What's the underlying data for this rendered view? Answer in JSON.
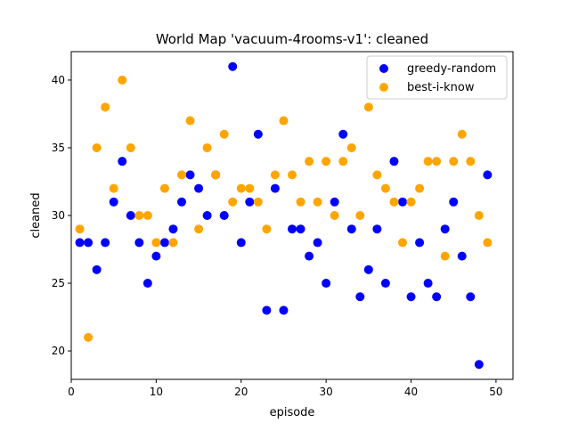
{
  "chart_data": {
    "type": "scatter",
    "title": "World Map 'vacuum-4rooms-v1': cleaned",
    "xlabel": "episode",
    "ylabel": "cleaned",
    "xlim": [
      0,
      52
    ],
    "ylim": [
      17.9,
      42.1
    ],
    "xticks": [
      0,
      10,
      20,
      30,
      40,
      50
    ],
    "yticks": [
      20,
      25,
      30,
      35,
      40
    ],
    "xtick_labels": [
      "0",
      "10",
      "20",
      "30",
      "40",
      "50"
    ],
    "ytick_labels": [
      "20",
      "25",
      "30",
      "35",
      "40"
    ],
    "grid": false,
    "legend_position": "top-right",
    "series": [
      {
        "name": "greedy-random",
        "color": "#0000ff",
        "x": [
          1,
          2,
          3,
          4,
          5,
          6,
          7,
          8,
          9,
          10,
          11,
          12,
          13,
          14,
          15,
          16,
          17,
          18,
          19,
          20,
          21,
          22,
          23,
          24,
          25,
          26,
          27,
          28,
          29,
          30,
          31,
          32,
          33,
          34,
          35,
          36,
          37,
          38,
          39,
          40,
          41,
          42,
          43,
          44,
          45,
          46,
          47,
          48,
          49
        ],
        "y": [
          28,
          28,
          26,
          28,
          31,
          34,
          30,
          28,
          25,
          27,
          28,
          29,
          31,
          33,
          32,
          30,
          33,
          30,
          41,
          28,
          31,
          36,
          23,
          32,
          23,
          29,
          29,
          27,
          28,
          25,
          31,
          36,
          29,
          24,
          26,
          29,
          25,
          34,
          31,
          24,
          28,
          25,
          24,
          29,
          31,
          27,
          24,
          19,
          33
        ]
      },
      {
        "name": "best-i-know",
        "color": "#ffa500",
        "x": [
          1,
          2,
          3,
          4,
          5,
          6,
          7,
          8,
          9,
          10,
          11,
          12,
          13,
          14,
          15,
          16,
          17,
          18,
          19,
          20,
          21,
          22,
          23,
          24,
          25,
          26,
          27,
          28,
          29,
          30,
          31,
          32,
          33,
          34,
          35,
          36,
          37,
          38,
          39,
          40,
          41,
          42,
          43,
          44,
          45,
          46,
          47,
          48,
          49
        ],
        "y": [
          29,
          21,
          35,
          38,
          32,
          40,
          35,
          30,
          30,
          28,
          32,
          28,
          33,
          37,
          29,
          35,
          33,
          36,
          31,
          32,
          32,
          31,
          29,
          33,
          37,
          33,
          31,
          34,
          31,
          34,
          30,
          34,
          35,
          30,
          38,
          33,
          32,
          31,
          28,
          31,
          32,
          34,
          34,
          27,
          34,
          36,
          34,
          30,
          28
        ]
      }
    ]
  }
}
